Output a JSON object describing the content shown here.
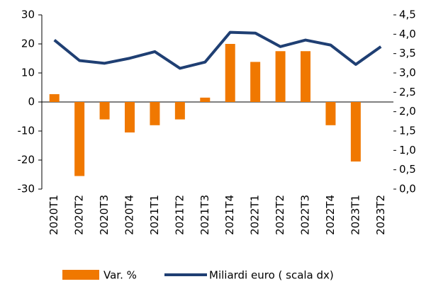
{
  "chart_data": {
    "type": "bar-line",
    "categories": [
      "2020T1",
      "2020T2",
      "2020T3",
      "2020T4",
      "2021T1",
      "2021T2",
      "2021T3",
      "2021T4",
      "2022T1",
      "2022T2",
      "2022T3",
      "2022T4",
      "2023T1",
      "2023T2"
    ],
    "series": [
      {
        "name": "Var. %",
        "type": "bar",
        "color": "#f07800",
        "values": [
          2.7,
          -25.5,
          -6,
          -10.5,
          -8,
          -6,
          1.5,
          20,
          13.8,
          17.5,
          17.5,
          -8,
          -20.5,
          null
        ]
      },
      {
        "name": "Miliardi euro ( scala dx)",
        "type": "line",
        "axis": "y2",
        "color": "#1f3f73",
        "values": [
          3.85,
          3.32,
          3.25,
          3.38,
          3.55,
          3.12,
          3.28,
          4.05,
          4.03,
          3.68,
          3.85,
          3.72,
          3.22,
          3.68
        ]
      }
    ],
    "ylim": [
      -30,
      30
    ],
    "yticks": [
      -30,
      -20,
      -10,
      0,
      10,
      20,
      30
    ],
    "y2lim": [
      0,
      4.5
    ],
    "y2ticks": [
      {
        "value": 0,
        "label": "0,0"
      },
      {
        "value": 0.5,
        "label": "0,5"
      },
      {
        "value": 1,
        "label": "1,0"
      },
      {
        "value": 1.5,
        "label": "1,5"
      },
      {
        "value": 2,
        "label": "2,0"
      },
      {
        "value": 2.5,
        "label": "2,5"
      },
      {
        "value": 3,
        "label": "3,0"
      },
      {
        "value": 3.5,
        "label": "3,5"
      },
      {
        "value": 4,
        "label": "4,0"
      },
      {
        "value": 4.5,
        "label": "4,5"
      }
    ],
    "legend": "bottom"
  }
}
